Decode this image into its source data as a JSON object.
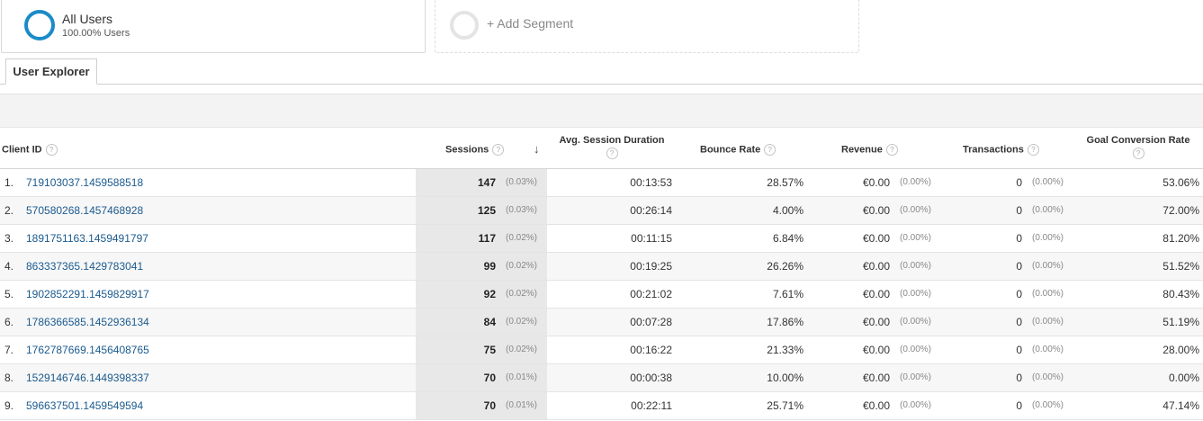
{
  "segments": {
    "all_users": {
      "title": "All Users",
      "subtitle": "100.00% Users"
    },
    "add_segment": {
      "label": "+ Add Segment"
    }
  },
  "tab": {
    "label": "User Explorer"
  },
  "columns": {
    "client_id": "Client ID",
    "sessions": "Sessions",
    "avg_session_duration": "Avg. Session Duration",
    "bounce_rate": "Bounce Rate",
    "revenue": "Revenue",
    "transactions": "Transactions",
    "goal_conversion_rate": "Goal Conversion Rate",
    "help_glyph": "?",
    "sort_glyph": "↓"
  },
  "rows": [
    {
      "num": "1.",
      "client_id": "719103037.1459588518",
      "sessions": "147",
      "sessions_pct": "(0.03%)",
      "duration": "00:13:53",
      "bounce": "28.57%",
      "revenue": "€0.00",
      "revenue_pct": "(0.00%)",
      "transactions": "0",
      "transactions_pct": "(0.00%)",
      "gcr": "53.06%"
    },
    {
      "num": "2.",
      "client_id": "570580268.1457468928",
      "sessions": "125",
      "sessions_pct": "(0.03%)",
      "duration": "00:26:14",
      "bounce": "4.00%",
      "revenue": "€0.00",
      "revenue_pct": "(0.00%)",
      "transactions": "0",
      "transactions_pct": "(0.00%)",
      "gcr": "72.00%"
    },
    {
      "num": "3.",
      "client_id": "1891751163.1459491797",
      "sessions": "117",
      "sessions_pct": "(0.02%)",
      "duration": "00:11:15",
      "bounce": "6.84%",
      "revenue": "€0.00",
      "revenue_pct": "(0.00%)",
      "transactions": "0",
      "transactions_pct": "(0.00%)",
      "gcr": "81.20%"
    },
    {
      "num": "4.",
      "client_id": "863337365.1429783041",
      "sessions": "99",
      "sessions_pct": "(0.02%)",
      "duration": "00:19:25",
      "bounce": "26.26%",
      "revenue": "€0.00",
      "revenue_pct": "(0.00%)",
      "transactions": "0",
      "transactions_pct": "(0.00%)",
      "gcr": "51.52%"
    },
    {
      "num": "5.",
      "client_id": "1902852291.1459829917",
      "sessions": "92",
      "sessions_pct": "(0.02%)",
      "duration": "00:21:02",
      "bounce": "7.61%",
      "revenue": "€0.00",
      "revenue_pct": "(0.00%)",
      "transactions": "0",
      "transactions_pct": "(0.00%)",
      "gcr": "80.43%"
    },
    {
      "num": "6.",
      "client_id": "1786366585.1452936134",
      "sessions": "84",
      "sessions_pct": "(0.02%)",
      "duration": "00:07:28",
      "bounce": "17.86%",
      "revenue": "€0.00",
      "revenue_pct": "(0.00%)",
      "transactions": "0",
      "transactions_pct": "(0.00%)",
      "gcr": "51.19%"
    },
    {
      "num": "7.",
      "client_id": "1762787669.1456408765",
      "sessions": "75",
      "sessions_pct": "(0.02%)",
      "duration": "00:16:22",
      "bounce": "21.33%",
      "revenue": "€0.00",
      "revenue_pct": "(0.00%)",
      "transactions": "0",
      "transactions_pct": "(0.00%)",
      "gcr": "28.00%"
    },
    {
      "num": "8.",
      "client_id": "1529146746.1449398337",
      "sessions": "70",
      "sessions_pct": "(0.01%)",
      "duration": "00:00:38",
      "bounce": "10.00%",
      "revenue": "€0.00",
      "revenue_pct": "(0.00%)",
      "transactions": "0",
      "transactions_pct": "(0.00%)",
      "gcr": "0.00%"
    },
    {
      "num": "9.",
      "client_id": "596637501.1459549594",
      "sessions": "70",
      "sessions_pct": "(0.01%)",
      "duration": "00:22:11",
      "bounce": "25.71%",
      "revenue": "€0.00",
      "revenue_pct": "(0.00%)",
      "transactions": "0",
      "transactions_pct": "(0.00%)",
      "gcr": "47.14%"
    }
  ]
}
